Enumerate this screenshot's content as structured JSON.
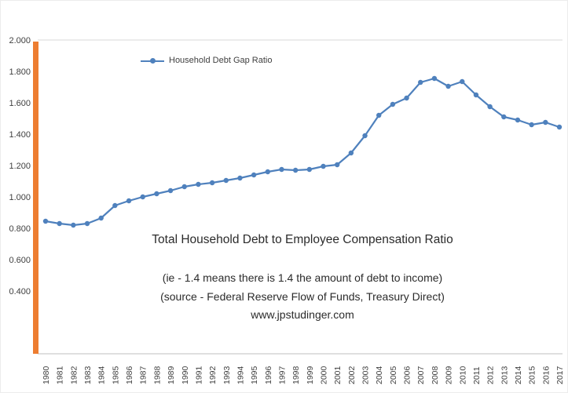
{
  "chart_data": {
    "type": "line",
    "x": [
      "1980",
      "1981",
      "1982",
      "1983",
      "1984",
      "1985",
      "1986",
      "1987",
      "1988",
      "1989",
      "1990",
      "1991",
      "1992",
      "1993",
      "1994",
      "1995",
      "1996",
      "1997",
      "1998",
      "1999",
      "2000",
      "2001",
      "2002",
      "2003",
      "2004",
      "2005",
      "2006",
      "2007",
      "2008",
      "2009",
      "2010",
      "2011",
      "2012",
      "2013",
      "2014",
      "2015",
      "2016",
      "2017"
    ],
    "series": [
      {
        "name": "Household Debt Gap Ratio",
        "color": "#4F81BD",
        "values": [
          0.845,
          0.83,
          0.82,
          0.83,
          0.865,
          0.945,
          0.975,
          1.0,
          1.02,
          1.04,
          1.065,
          1.08,
          1.09,
          1.105,
          1.12,
          1.14,
          1.16,
          1.175,
          1.17,
          1.175,
          1.195,
          1.205,
          1.28,
          1.39,
          1.52,
          1.59,
          1.63,
          1.73,
          1.755,
          1.705,
          1.735,
          1.65,
          1.575,
          1.51,
          1.49,
          1.46,
          1.475,
          1.445
        ]
      }
    ],
    "ylim": [
      0.0,
      2.0
    ],
    "y_tick_labels": [
      "2.000",
      "1.800",
      "1.600",
      "1.400",
      "1.200",
      "1.000",
      "0.800",
      "0.600",
      "0.400"
    ],
    "y_tick_values": [
      2.0,
      1.8,
      1.6,
      1.4,
      1.2,
      1.0,
      0.8,
      0.6,
      0.4
    ],
    "grid": false,
    "legend_position": "inside-top-left",
    "annotations": {
      "title": "Total Household Debt to Employee Compensation Ratio",
      "sub1": "(ie - 1.4 means there is 1.4 the amount of debt to income)",
      "sub2": "(source - Federal Reserve Flow of Funds, Treasury Direct)",
      "sub3": "www.jpstudinger.com"
    },
    "accent_bar_color": "#ED7D31",
    "axis_line_color": "#BFBFBF",
    "tick_label_color": "#404040"
  }
}
